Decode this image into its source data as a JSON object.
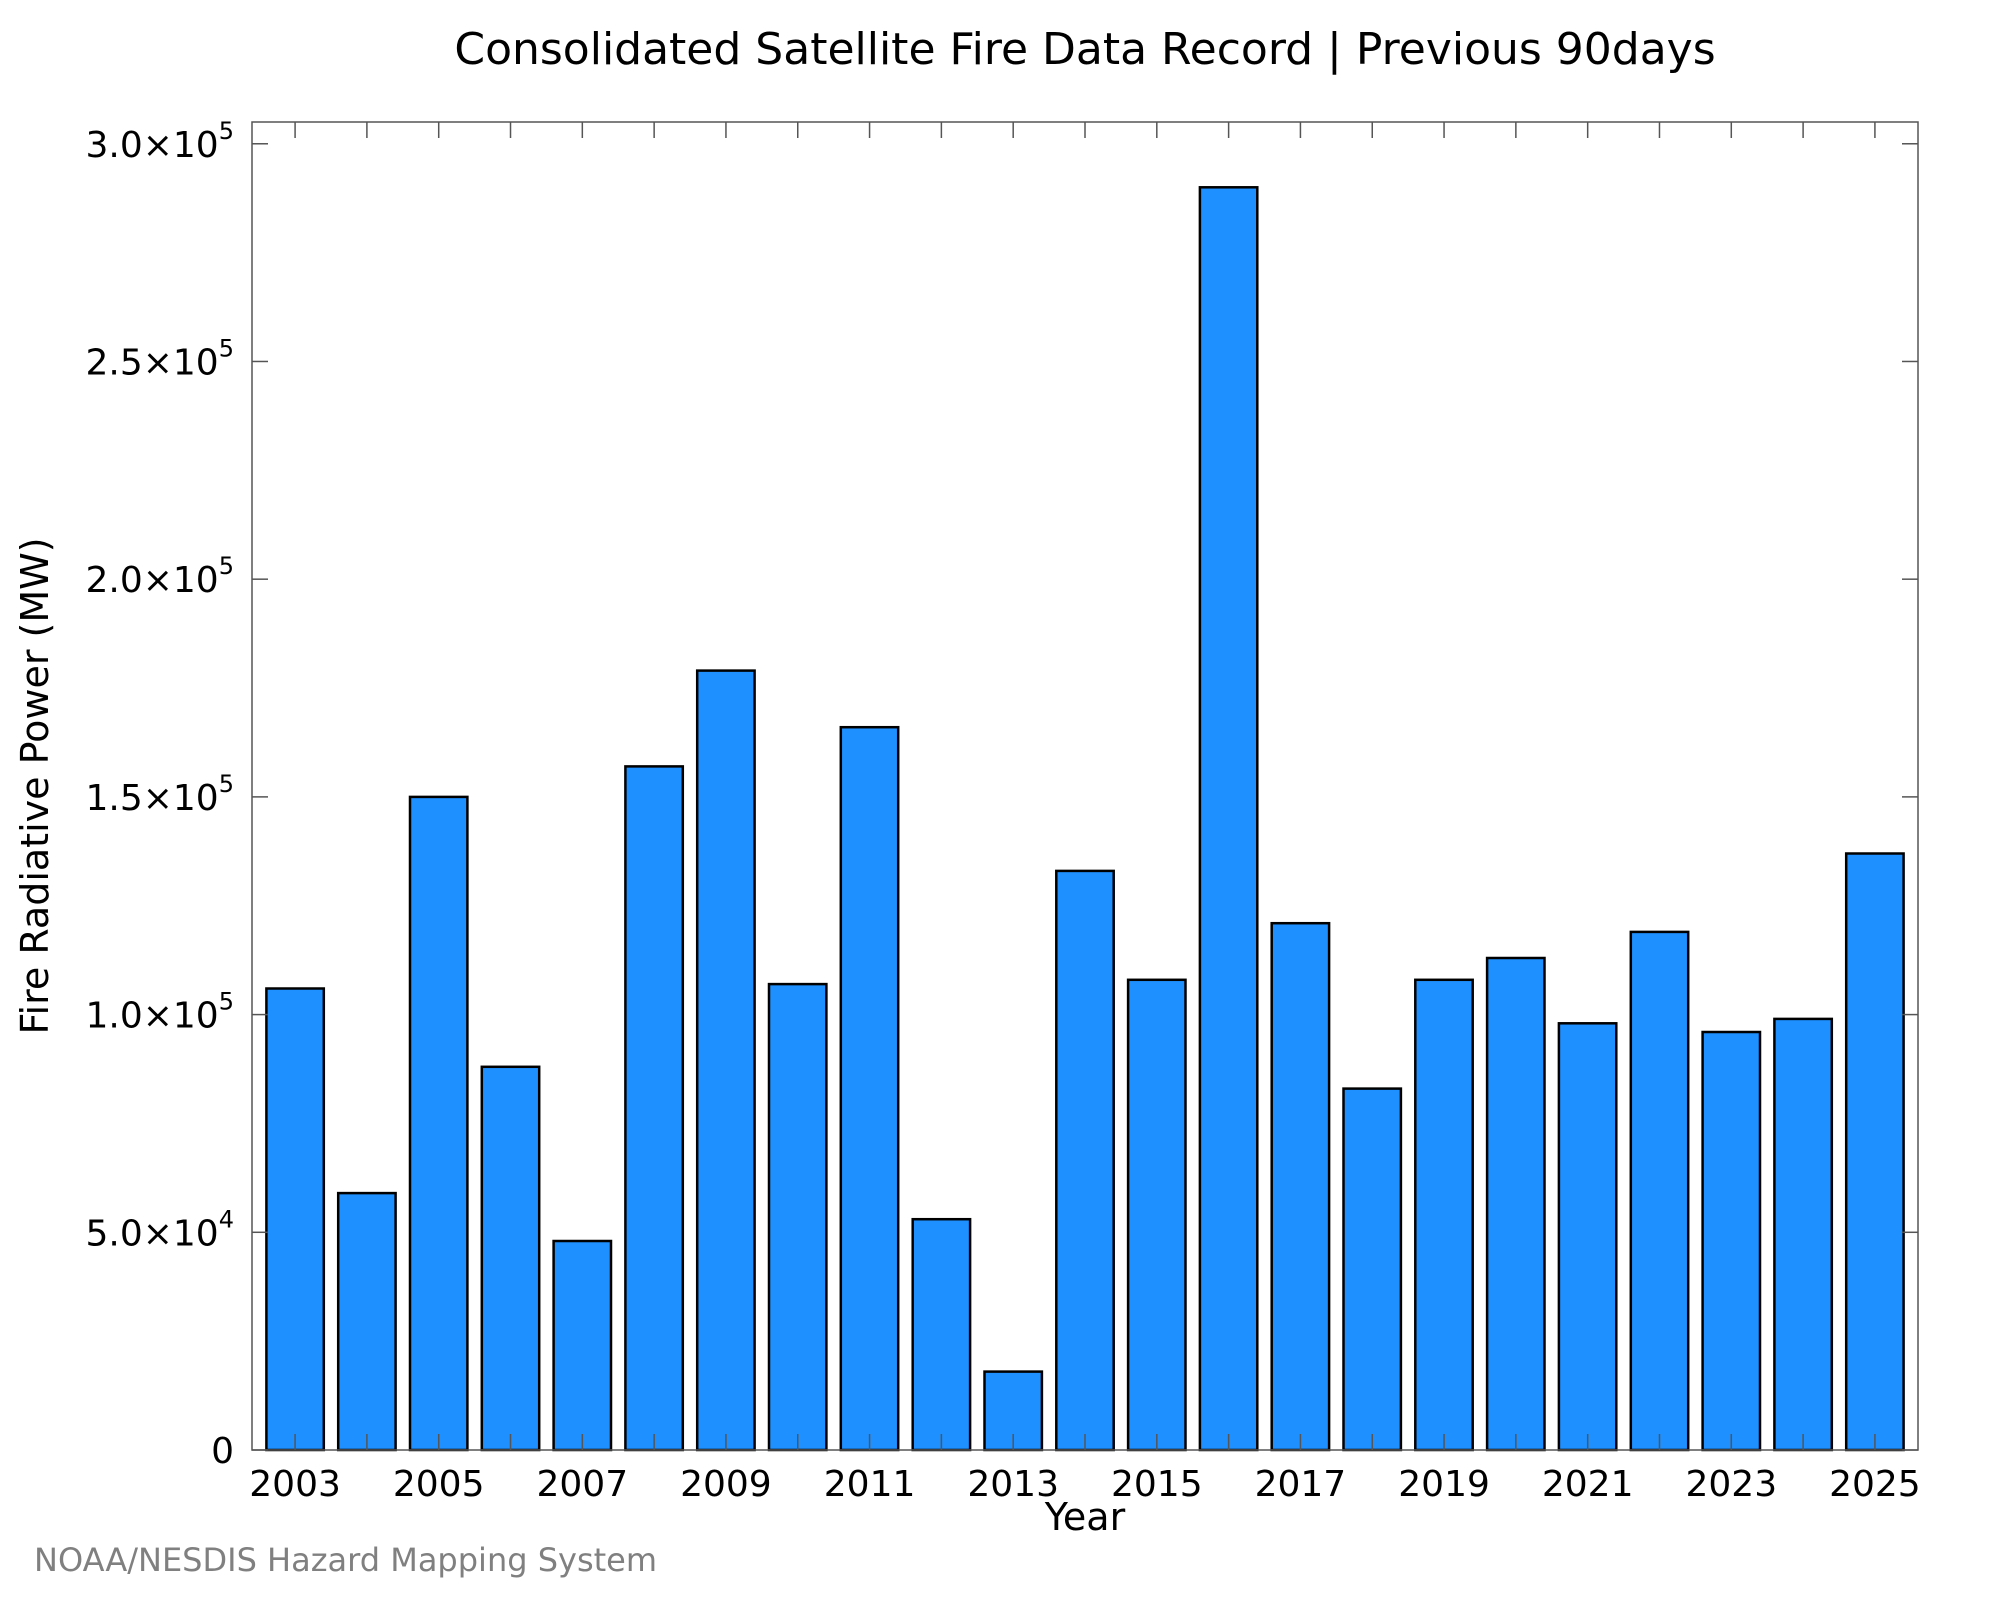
{
  "chart_data": {
    "type": "bar",
    "title": "Consolidated Satellite Fire Data Record | Previous 90days",
    "xlabel": "Year",
    "ylabel": "Fire Radiative Power (MW)",
    "credit": "NOAA/NESDIS Hazard Mapping System",
    "categories": [
      "2003",
      "2004",
      "2005",
      "2006",
      "2007",
      "2008",
      "2009",
      "2010",
      "2011",
      "2012",
      "2013",
      "2014",
      "2015",
      "2016",
      "2017",
      "2018",
      "2019",
      "2020",
      "2021",
      "2022",
      "2023",
      "2024",
      "2025"
    ],
    "values": [
      106000,
      59000,
      150000,
      88000,
      48000,
      157000,
      179000,
      107000,
      166000,
      53000,
      18000,
      133000,
      108000,
      290000,
      121000,
      83000,
      108000,
      113000,
      98000,
      119000,
      96000,
      99000,
      137000
    ],
    "x_tick_labels": [
      "2003",
      "2005",
      "2007",
      "2009",
      "2011",
      "2013",
      "2015",
      "2017",
      "2019",
      "2021",
      "2023",
      "2025"
    ],
    "y_ticks": [
      {
        "value": 0,
        "mantissa": "0",
        "exponent": ""
      },
      {
        "value": 50000,
        "mantissa": "5.0×10",
        "exponent": "4"
      },
      {
        "value": 100000,
        "mantissa": "1.0×10",
        "exponent": "5"
      },
      {
        "value": 150000,
        "mantissa": "1.5×10",
        "exponent": "5"
      },
      {
        "value": 200000,
        "mantissa": "2.0×10",
        "exponent": "5"
      },
      {
        "value": 250000,
        "mantissa": "2.5×10",
        "exponent": "5"
      },
      {
        "value": 300000,
        "mantissa": "3.0×10",
        "exponent": "5"
      }
    ],
    "ylim": [
      0,
      305000
    ],
    "xlim": [
      2002.4,
      2025.6
    ],
    "grid": false,
    "bar_color": "#1e90ff",
    "bar_edge_color": "#000000"
  }
}
